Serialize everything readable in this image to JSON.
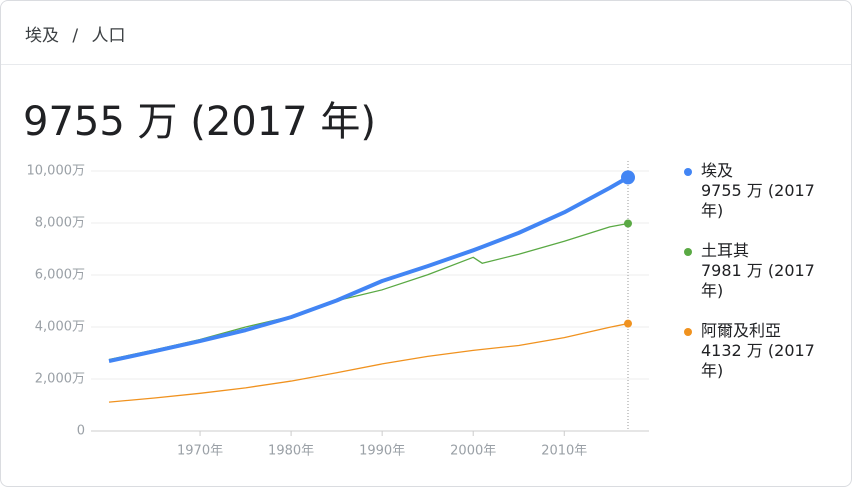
{
  "breadcrumb": [
    "埃及",
    "人口"
  ],
  "breadcrumb_separator": "/",
  "chart_data": {
    "type": "line",
    "title": "9755 万 (2017 年)",
    "x": [
      1960,
      1965,
      1970,
      1975,
      1980,
      1985,
      1990,
      1995,
      2000,
      2001,
      2005,
      2010,
      2015,
      2017
    ],
    "xlim": [
      1960,
      2017
    ],
    "xticks": [
      {
        "value": 1970,
        "label": "1970年"
      },
      {
        "value": 1980,
        "label": "1980年"
      },
      {
        "value": 1990,
        "label": "1990年"
      },
      {
        "value": 2000,
        "label": "2000年"
      },
      {
        "value": 2010,
        "label": "2010年"
      }
    ],
    "ylim": [
      0,
      10000
    ],
    "yticks": [
      0,
      {
        "value": 2000,
        "label": "2,000万"
      },
      {
        "value": 4000,
        "label": "4,000万"
      },
      {
        "value": 6000,
        "label": "6,000万"
      },
      {
        "value": 8000,
        "label": "8,000万"
      },
      {
        "value": 10000,
        "label": "10,000万"
      }
    ],
    "grid": true,
    "series": [
      {
        "name": "埃及",
        "legend_label": "9755 万 (2017 年)",
        "color": "#4285f4",
        "values": [
          2690,
          3070,
          3460,
          3880,
          4380,
          5020,
          5770,
          6340,
          6950,
          7080,
          7620,
          8410,
          9350,
          9755
        ]
      },
      {
        "name": "土耳其",
        "legend_label": "7981 万 (2017 年)",
        "color": "#5aa944",
        "values": [
          2750,
          3120,
          3520,
          4000,
          4410,
          5010,
          5430,
          6010,
          6680,
          6450,
          6800,
          7300,
          7850,
          7981
        ]
      },
      {
        "name": "阿爾及利亞",
        "legend_label": "4132 万 (2017 年)",
        "color": "#f0921f",
        "values": [
          1110,
          1270,
          1450,
          1660,
          1920,
          2240,
          2580,
          2870,
          3100,
          3140,
          3290,
          3590,
          3990,
          4132
        ]
      }
    ]
  }
}
